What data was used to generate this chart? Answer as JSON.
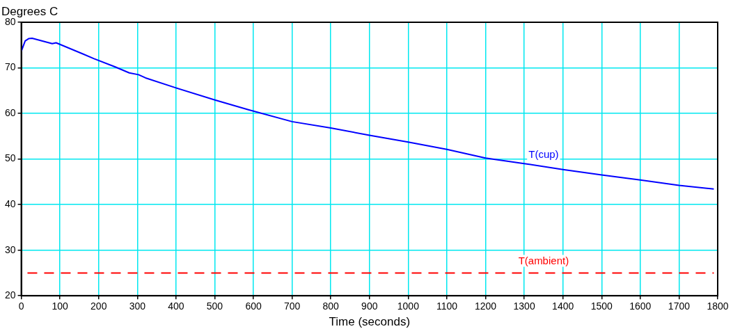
{
  "chart_data": {
    "type": "line",
    "xlabel": "Time (seconds)",
    "ylabel": "Degrees C",
    "xlim": [
      0,
      1800
    ],
    "xticks": [
      0,
      100,
      200,
      300,
      400,
      500,
      600,
      700,
      800,
      900,
      1000,
      1100,
      1200,
      1300,
      1400,
      1500,
      1600,
      1700,
      1800
    ],
    "ylim": [
      20,
      80
    ],
    "yticks": [
      20,
      30,
      40,
      50,
      60,
      70,
      80
    ],
    "grid": true,
    "legend": false,
    "marker": "none",
    "series": [
      {
        "name": "T(cup)",
        "color": "#0000ff",
        "line_style": "solid",
        "x": [
          0,
          10,
          19,
          28,
          80,
          90,
          158,
          188,
          243,
          279,
          303,
          321,
          400,
          502,
          587,
          700,
          800,
          900,
          1000,
          1100,
          1200,
          1300,
          1400,
          1500,
          1600,
          1700,
          1790
        ],
        "values": [
          73.6,
          75.9,
          76.4,
          76.5,
          75.3,
          75.5,
          73.1,
          72.0,
          70.2,
          68.9,
          68.5,
          67.8,
          65.6,
          62.9,
          60.8,
          58.2,
          56.8,
          55.2,
          53.7,
          52.1,
          50.2,
          49.0,
          47.7,
          46.5,
          45.4,
          44.2,
          43.4
        ]
      },
      {
        "name": "T(ambient)",
        "color": "#ff0000",
        "line_style": "dashed",
        "x": [
          16,
          1790
        ],
        "values": [
          25,
          25
        ]
      }
    ]
  }
}
